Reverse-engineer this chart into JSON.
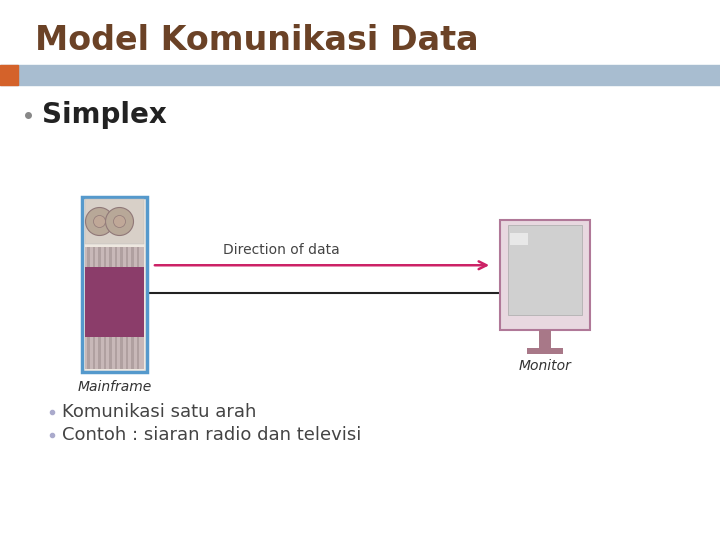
{
  "title": "Model Komunikasi Data",
  "title_color": "#6B4226",
  "title_fontsize": 24,
  "header_bar_color": "#A8BDD0",
  "header_orange_color": "#D4622A",
  "bullet1": "Simplex",
  "bullet1_fontsize": 20,
  "bullet_dot_color": "#888888",
  "sub_bullet1": "Komunikasi satu arah",
  "sub_bullet2": "Contoh : siaran radio dan televisi",
  "sub_bullet_fontsize": 13,
  "sub_bullet_color": "#444444",
  "sub_dot_color": "#AAAACC",
  "arrow_label": "Direction of data",
  "arrow_label_fontsize": 10,
  "mainframe_label": "Mainframe",
  "monitor_label": "Monitor",
  "label_fontsize": 10,
  "background_color": "#FFFFFF",
  "mf_border_color": "#5599CC",
  "mf_top_bg": "#D8D0C8",
  "mf_disk_color": "#B8A898",
  "mf_stripe_color": "#C8B8B8",
  "mf_stripe_dark": "#B0A0A0",
  "mf_purple": "#8B3D6A",
  "mon_border": "#B07898",
  "mon_bg": "#E8D8E0",
  "mon_screen": "#D0D0D0",
  "mon_stand": "#A87888",
  "arrow_color": "#CC2266"
}
